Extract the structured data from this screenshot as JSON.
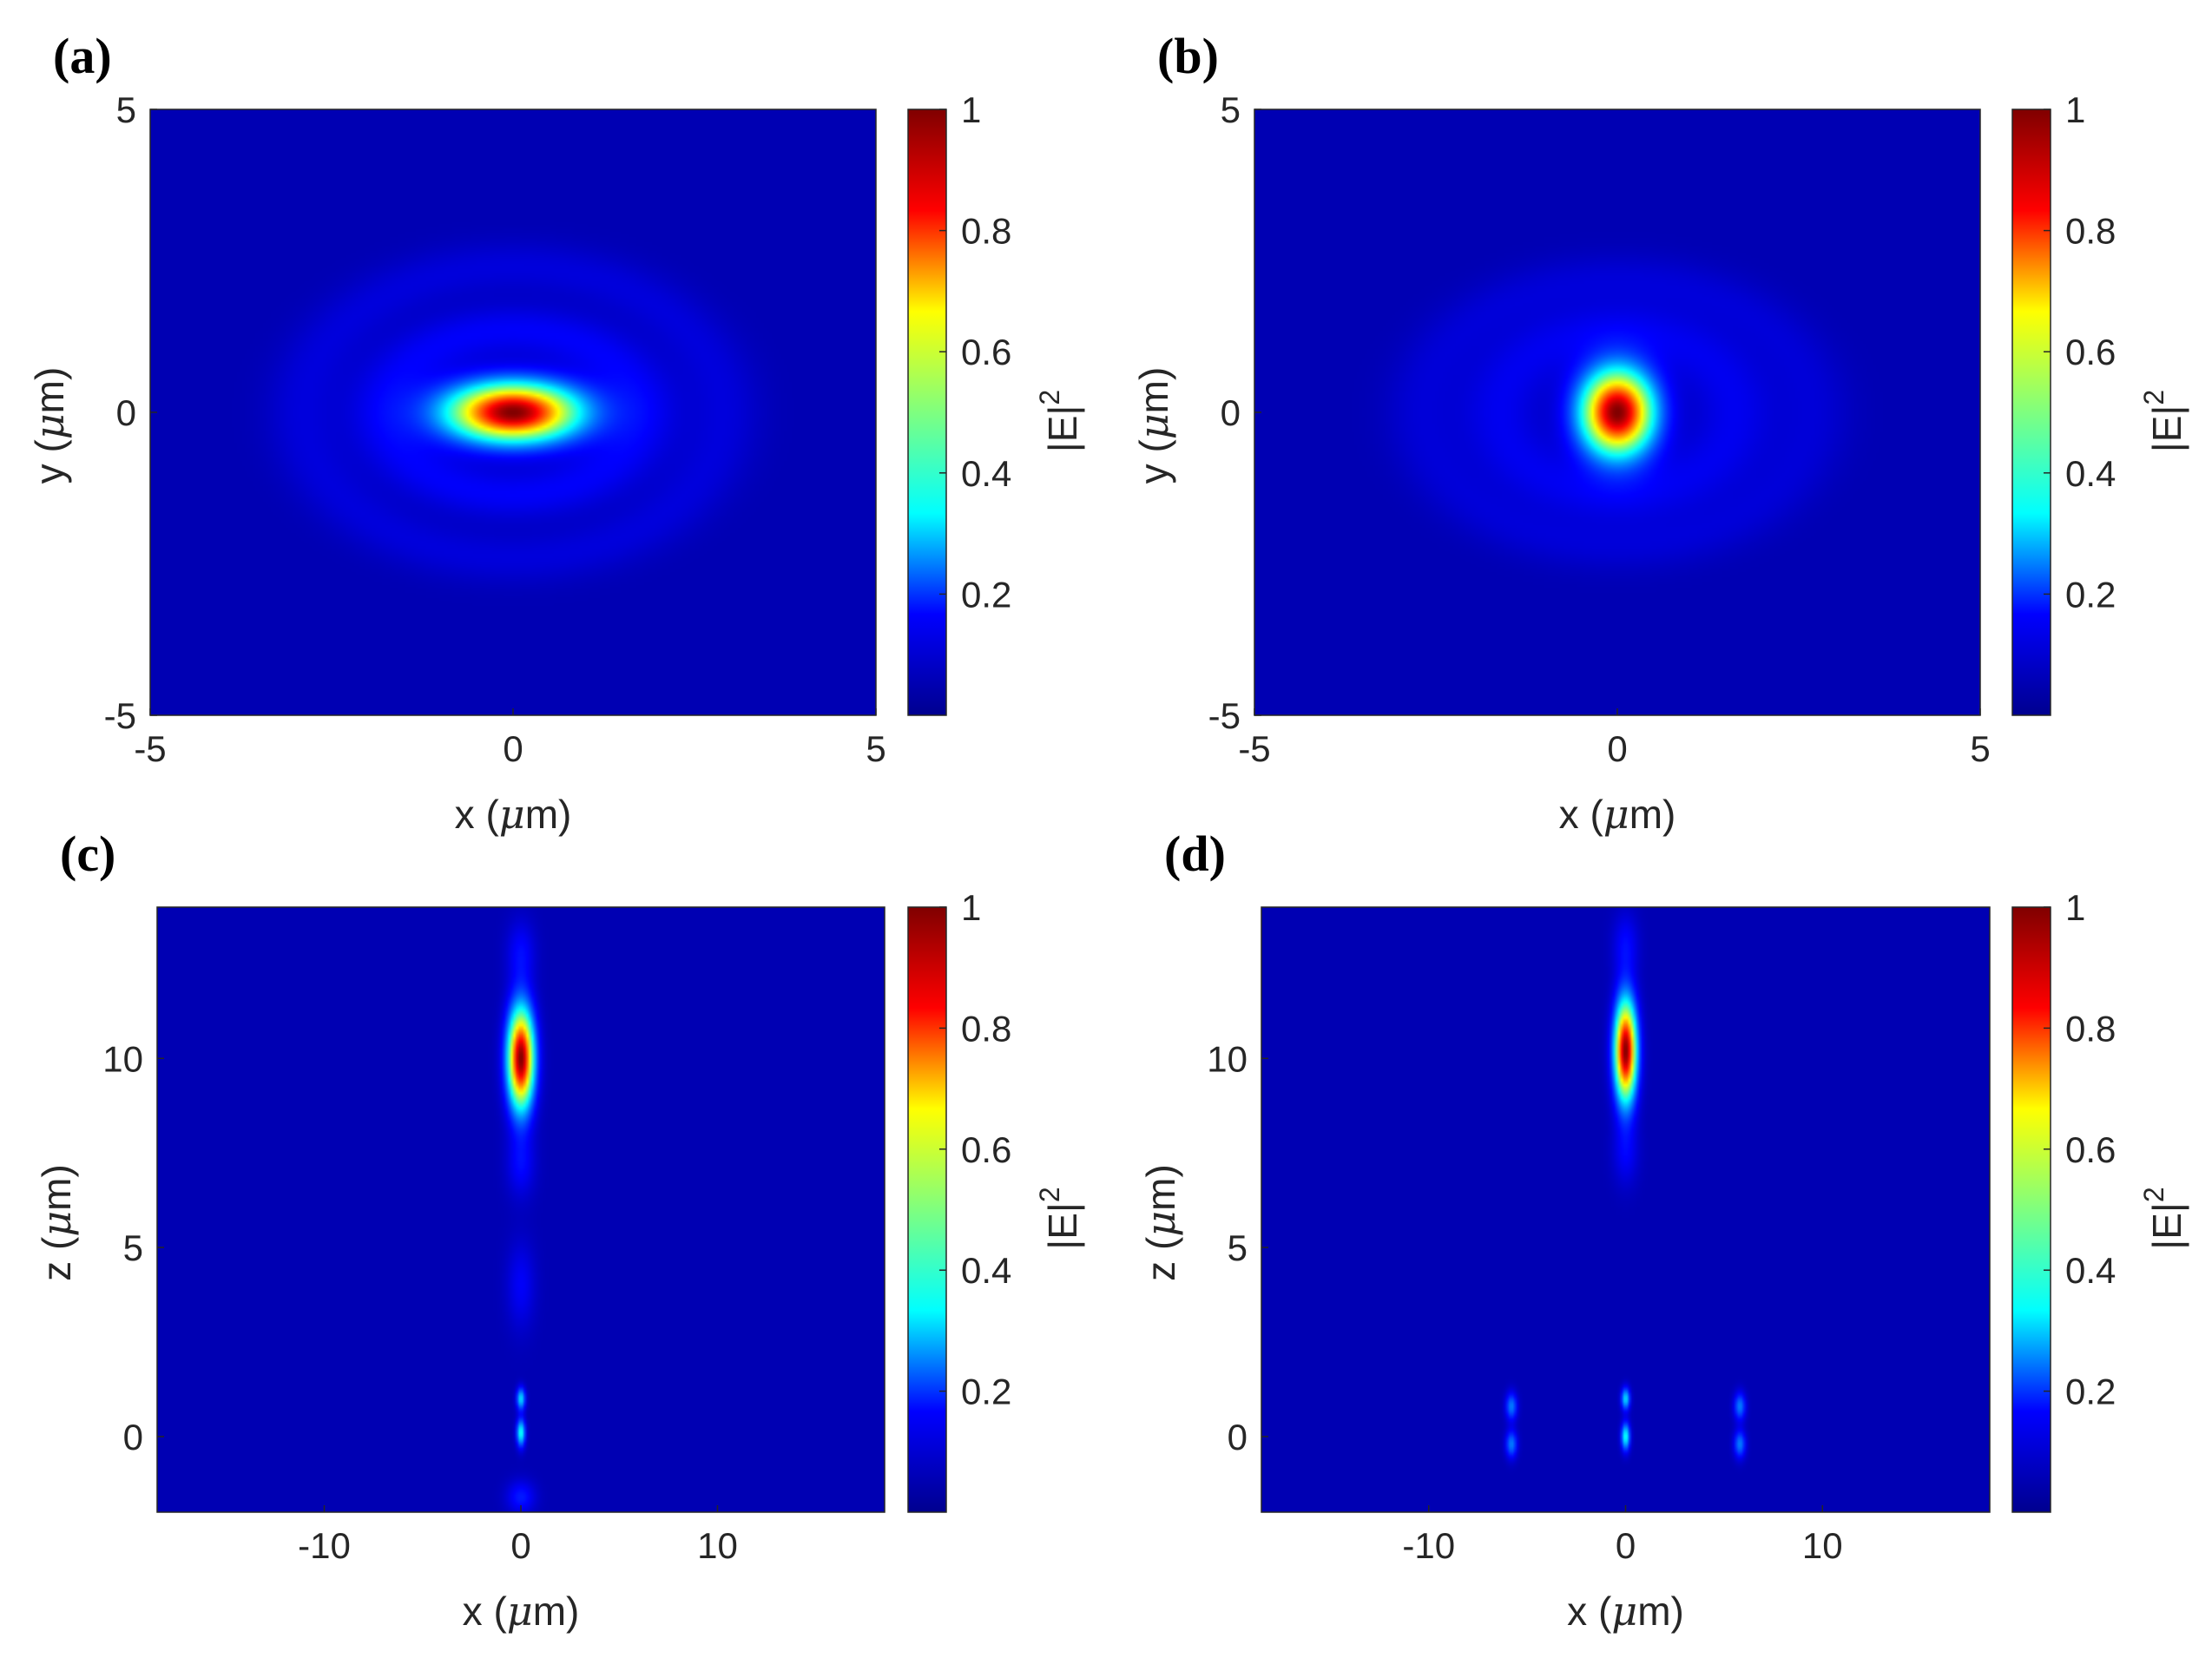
{
  "colorbar": {
    "ticks": [
      0.2,
      0.4,
      0.6,
      0.8,
      1
    ],
    "tick_labels": [
      "0.2",
      "0.4",
      "0.6",
      "0.8",
      "1"
    ],
    "range": [
      0,
      1
    ],
    "label_main": "|E|",
    "label_exp": "2",
    "colormap": "jet",
    "colormap_stops": [
      "#00008f",
      "#0000ff",
      "#00ffff",
      "#7fff7f",
      "#ffff00",
      "#ff0000",
      "#800000"
    ]
  },
  "chart_data": [
    {
      "type": "heatmap",
      "panel_label": "(a)",
      "xlabel_prefix": "x (",
      "xlabel_unit": "μ",
      "xlabel_suffix": "m)",
      "ylabel_prefix": "y (",
      "ylabel_unit": "μ",
      "ylabel_suffix": "m)",
      "xlim": [
        -5,
        5
      ],
      "ylim": [
        -5,
        5
      ],
      "xticks": [
        -5,
        0,
        5
      ],
      "xtick_labels": [
        "-5",
        "0",
        "5"
      ],
      "yticks": [
        -5,
        0,
        5
      ],
      "ytick_labels": [
        "-5",
        "0",
        "5"
      ],
      "background_value": 0.05,
      "peaks": [
        {
          "x": 0,
          "y": 0,
          "sx": 0.62,
          "sy": 0.33,
          "amp": 0.95
        }
      ],
      "rings": [
        {
          "x": 0,
          "y": 0,
          "rx": 1.75,
          "ry": 1.35,
          "width": 0.3,
          "amp": 0.07
        },
        {
          "x": 0,
          "y": 0,
          "rx": 2.9,
          "ry": 2.4,
          "width": 0.3,
          "amp": 0.04
        }
      ]
    },
    {
      "type": "heatmap",
      "panel_label": "(b)",
      "xlabel_prefix": "x (",
      "xlabel_unit": "μ",
      "xlabel_suffix": "m)",
      "ylabel_prefix": "y (",
      "ylabel_unit": "μ",
      "ylabel_suffix": "m)",
      "xlim": [
        -5,
        5
      ],
      "ylim": [
        -5,
        5
      ],
      "xticks": [
        -5,
        0,
        5
      ],
      "xtick_labels": [
        "-5",
        "0",
        "5"
      ],
      "yticks": [
        -5,
        0,
        5
      ],
      "ytick_labels": [
        "-5",
        "0",
        "5"
      ],
      "background_value": 0.05,
      "peaks": [
        {
          "x": 0,
          "y": 0,
          "sx": 0.34,
          "sy": 0.48,
          "amp": 0.95
        }
      ],
      "rings": [
        {
          "x": 0,
          "y": 0,
          "rx": 1.6,
          "ry": 1.35,
          "width": 0.35,
          "amp": 0.06
        },
        {
          "x": 0,
          "y": 0,
          "rx": 2.7,
          "ry": 2.2,
          "width": 0.3,
          "amp": 0.035
        }
      ]
    },
    {
      "type": "heatmap",
      "panel_label": "(c)",
      "xlabel_prefix": "x (",
      "xlabel_unit": "μ",
      "xlabel_suffix": "m)",
      "ylabel_prefix": "z (",
      "ylabel_unit": "μ",
      "ylabel_suffix": "m)",
      "xlim": [
        -18.5,
        18.5
      ],
      "ylim": [
        -2,
        14
      ],
      "xticks": [
        -10,
        0,
        10
      ],
      "xtick_labels": [
        "-10",
        "0",
        "10"
      ],
      "yticks": [
        0,
        5,
        10
      ],
      "ytick_labels": [
        "0",
        "5",
        "10"
      ],
      "background_value": 0.05,
      "peaks": [
        {
          "x": 0,
          "y": 10,
          "sx": 0.45,
          "sy": 0.9,
          "amp": 0.95
        },
        {
          "x": 0,
          "y": 12.8,
          "sx": 0.5,
          "sy": 0.6,
          "amp": 0.08
        },
        {
          "x": 0,
          "y": 7.2,
          "sx": 0.5,
          "sy": 0.6,
          "amp": 0.08
        },
        {
          "x": 0,
          "y": 4.0,
          "sx": 0.5,
          "sy": 0.8,
          "amp": 0.07
        },
        {
          "x": 0,
          "y": 1.0,
          "sx": 0.15,
          "sy": 0.2,
          "amp": 0.3
        },
        {
          "x": 0,
          "y": 0.1,
          "sx": 0.15,
          "sy": 0.25,
          "amp": 0.35
        },
        {
          "x": 0,
          "y": -1.6,
          "sx": 0.5,
          "sy": 0.3,
          "amp": 0.1
        }
      ],
      "rings": []
    },
    {
      "type": "heatmap",
      "panel_label": "(d)",
      "xlabel_prefix": "x (",
      "xlabel_unit": "μ",
      "xlabel_suffix": "m)",
      "ylabel_prefix": "z (",
      "ylabel_unit": "μ",
      "ylabel_suffix": "m)",
      "xlim": [
        -18.5,
        18.5
      ],
      "ylim": [
        -2,
        14
      ],
      "xticks": [
        -10,
        0,
        10
      ],
      "xtick_labels": [
        "-10",
        "0",
        "10"
      ],
      "yticks": [
        0,
        5,
        10
      ],
      "ytick_labels": [
        "0",
        "5",
        "10"
      ],
      "background_value": 0.05,
      "peaks": [
        {
          "x": 0,
          "y": 10.2,
          "sx": 0.38,
          "sy": 0.9,
          "amp": 0.95
        },
        {
          "x": 0,
          "y": 13.0,
          "sx": 0.45,
          "sy": 0.6,
          "amp": 0.08
        },
        {
          "x": 0,
          "y": 7.5,
          "sx": 0.45,
          "sy": 0.6,
          "amp": 0.07
        },
        {
          "x": 0,
          "y": 1.0,
          "sx": 0.15,
          "sy": 0.2,
          "amp": 0.3
        },
        {
          "x": 0,
          "y": 0.0,
          "sx": 0.15,
          "sy": 0.25,
          "amp": 0.35
        },
        {
          "x": -5.8,
          "y": 0.8,
          "sx": 0.2,
          "sy": 0.25,
          "amp": 0.2
        },
        {
          "x": -5.8,
          "y": -0.2,
          "sx": 0.2,
          "sy": 0.25,
          "amp": 0.2
        },
        {
          "x": 5.8,
          "y": 0.8,
          "sx": 0.2,
          "sy": 0.25,
          "amp": 0.2
        },
        {
          "x": 5.8,
          "y": -0.2,
          "sx": 0.2,
          "sy": 0.25,
          "amp": 0.2
        }
      ],
      "rings": []
    }
  ]
}
